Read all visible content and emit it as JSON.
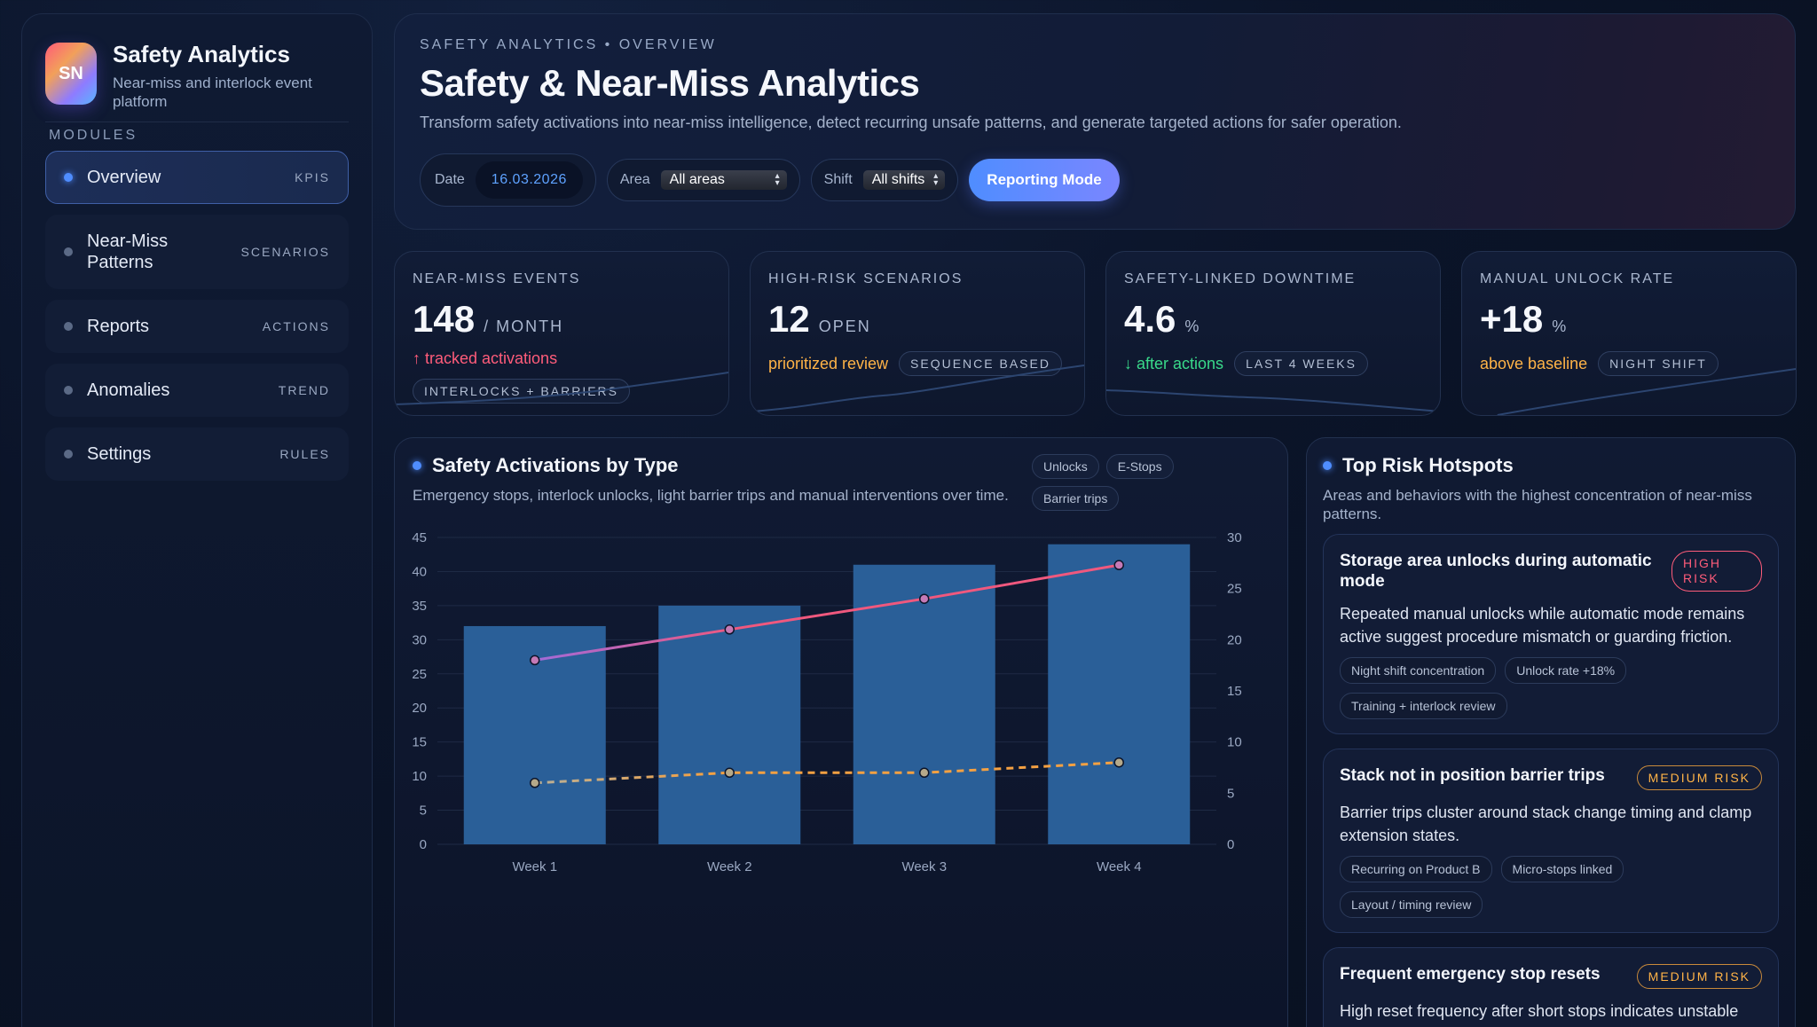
{
  "brand": {
    "logo_text": "SN",
    "title": "Safety Analytics",
    "subtitle": "Near-miss and interlock event platform"
  },
  "sidebar": {
    "section_label": "MODULES",
    "items": [
      {
        "label": "Overview",
        "tag": "KPIS",
        "active": true
      },
      {
        "label": "Near-Miss Patterns",
        "tag": "SCENARIOS",
        "active": false
      },
      {
        "label": "Reports",
        "tag": "ACTIONS",
        "active": false
      },
      {
        "label": "Anomalies",
        "tag": "TREND",
        "active": false
      },
      {
        "label": "Settings",
        "tag": "RULES",
        "active": false
      }
    ]
  },
  "header": {
    "breadcrumb": "SAFETY ANALYTICS • OVERVIEW",
    "title": "Safety & Near-Miss Analytics",
    "description": "Transform safety activations into near-miss intelligence, detect recurring unsafe patterns, and generate targeted actions for safer operation.",
    "date_label": "Date",
    "date_value": "16.03.2026",
    "area_label": "Area",
    "area_value": "All areas",
    "shift_label": "Shift",
    "shift_value": "All shifts",
    "reporting_button": "Reporting Mode"
  },
  "kpis": [
    {
      "label": "NEAR-MISS EVENTS",
      "value": "148",
      "unit": "/ MONTH",
      "note": "↑ tracked activations",
      "note_color": "red",
      "pill": "INTERLOCKS + BARRIERS"
    },
    {
      "label": "HIGH-RISK SCENARIOS",
      "value": "12",
      "unit": "OPEN",
      "note": "prioritized review",
      "note_color": "amber",
      "pill": "SEQUENCE BASED"
    },
    {
      "label": "SAFETY-LINKED DOWNTIME",
      "value": "4.6",
      "unit": "%",
      "note": "↓ after actions",
      "note_color": "green",
      "pill": "LAST 4 WEEKS"
    },
    {
      "label": "MANUAL UNLOCK RATE",
      "value": "+18",
      "unit": "%",
      "note": "above baseline",
      "note_color": "amber",
      "pill": "NIGHT SHIFT"
    }
  ],
  "chart_panel": {
    "title": "Safety Activations by Type",
    "description": "Emergency stops, interlock unlocks, light barrier trips and manual interventions over time.",
    "legend_chips": [
      "Unlocks",
      "E-Stops",
      "Barrier trips"
    ]
  },
  "chart_data": {
    "type": "bar",
    "categories": [
      "Week 1",
      "Week 2",
      "Week 3",
      "Week 4"
    ],
    "series": [
      {
        "type": "bar",
        "axis": "left",
        "values": [
          32,
          35,
          41,
          44
        ],
        "color": "#2a5f98"
      },
      {
        "type": "line",
        "axis": "right",
        "values": [
          18,
          21,
          24,
          27.3
        ],
        "color": "#f0587e"
      },
      {
        "type": "line",
        "axis": "right",
        "style": "dashed",
        "values": [
          6,
          7,
          7,
          8
        ],
        "color": "#f5a142"
      }
    ],
    "y_left": {
      "min": 0,
      "max": 45,
      "ticks": [
        0,
        5,
        10,
        15,
        20,
        25,
        30,
        35,
        40,
        45
      ]
    },
    "y_right": {
      "min": 0,
      "max": 30,
      "ticks": [
        0,
        5,
        10,
        15,
        20,
        25,
        30
      ]
    },
    "grid": true
  },
  "hotspots": {
    "title": "Top Risk Hotspots",
    "description": "Areas and behaviors with the highest concentration of near-miss patterns.",
    "items": [
      {
        "title": "Storage area unlocks during automatic mode",
        "risk": "HIGH RISK",
        "level": "high",
        "body": "Repeated manual unlocks while automatic mode remains active suggest procedure mismatch or guarding friction.",
        "tags": [
          "Night shift concentration",
          "Unlock rate +18%",
          "Training + interlock review"
        ]
      },
      {
        "title": "Stack not in position barrier trips",
        "risk": "MEDIUM RISK",
        "level": "medium",
        "body": "Barrier trips cluster around stack change timing and clamp extension states.",
        "tags": [
          "Recurring on Product B",
          "Micro-stops linked",
          "Layout / timing review"
        ]
      },
      {
        "title": "Frequent emergency stop resets",
        "risk": "MEDIUM RISK",
        "level": "medium",
        "body": "High reset frequency after short stops indicates unstable recovery behavior.",
        "tags": []
      }
    ]
  },
  "colors": {
    "accent": "#4f8dff",
    "red": "#ff5c7a",
    "amber": "#ffb347",
    "green": "#39d98a"
  }
}
